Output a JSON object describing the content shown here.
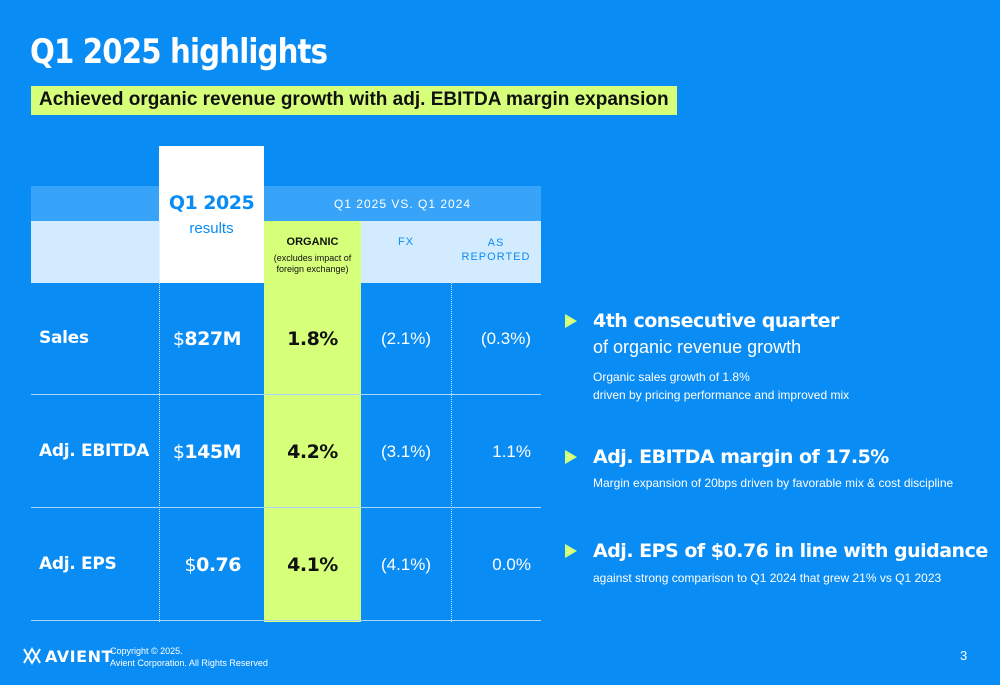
{
  "slide": {
    "title": "Q1 2025 highlights",
    "subtitle": "Achieved organic revenue growth with adj. EBITDA margin expansion",
    "page_number": "3"
  },
  "table": {
    "results_head": "Q1 2025",
    "results_sub": "results",
    "comparison_head": "Q1 2025 VS. Q1 2024",
    "organic_head": "ORGANIC",
    "organic_note_1": "(excludes impact of",
    "organic_note_2": "foreign exchange)",
    "fx_head": "FX",
    "as_head_1": "AS",
    "as_head_2": "REPORTED",
    "rows": [
      {
        "label": "Sales",
        "currency": "$",
        "result": "827M",
        "organic": "1.8%",
        "fx": "(2.1%)",
        "as_reported": "(0.3%)"
      },
      {
        "label": "Adj. EBITDA",
        "currency": "$",
        "result": "145M",
        "organic": "4.2%",
        "fx": "(3.1%)",
        "as_reported": "1.1%"
      },
      {
        "label": "Adj. EPS",
        "currency": "$",
        "result": "0.76",
        "organic": "4.1%",
        "fx": "(4.1%)",
        "as_reported": "0.0%"
      }
    ]
  },
  "highlights": [
    {
      "title": "4th consecutive quarter",
      "subtitle": "of organic revenue growth",
      "note_1": "Organic sales growth of 1.8%",
      "note_2": "driven by pricing performance and improved mix"
    },
    {
      "title": "Adj. EBITDA margin of 17.5%",
      "note_1": "Margin expansion of 20bps driven by favorable mix & cost discipline"
    },
    {
      "title": "Adj. EPS of $0.76 in line with guidance",
      "note_1": "against strong comparison to Q1 2024 that grew 21% vs Q1 2023"
    }
  ],
  "footer": {
    "logo_text": "AVIENT",
    "copyright_1": "Copyright © 2025.",
    "copyright_2": "Avient Corporation. All Rights Reserved",
    "logo_icon": "avient-mark-icon"
  },
  "colors": {
    "background": "#0a8cf5",
    "accent_green": "#d6ff7a",
    "header_band": "#37a4fa",
    "subheader_band": "#d3ebff"
  }
}
